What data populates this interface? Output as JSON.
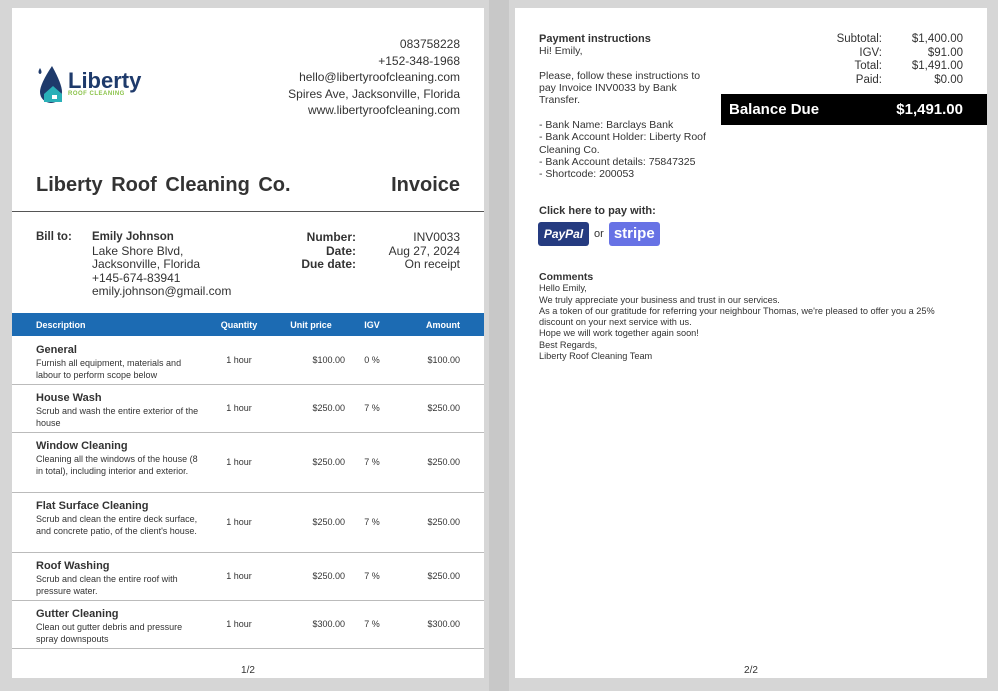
{
  "company": {
    "name": "Liberty Roof Cleaning Co.",
    "logo_text": "Liberty",
    "logo_sub": "ROOF CLEANING",
    "phone1": "083758228",
    "phone2": "+152-348-1968",
    "email": "hello@libertyroofcleaning.com",
    "address": "Spires Ave, Jacksonville, Florida",
    "website": "www.libertyroofcleaning.com"
  },
  "doc_title": "Invoice",
  "bill_to": {
    "label": "Bill to:",
    "name": "Emily Johnson",
    "line1": "Lake Shore Blvd,",
    "line2": "Jacksonville, Florida",
    "phone": "+145-674-83941",
    "email": "emily.johnson@gmail.com"
  },
  "meta": {
    "number_label": "Number:",
    "number": "INV0033",
    "date_label": "Date:",
    "date": "Aug 27, 2024",
    "due_label": "Due date:",
    "due": "On receipt"
  },
  "table": {
    "headers": [
      "Description",
      "Quantity",
      "Unit price",
      "IGV",
      "Amount"
    ],
    "rows": [
      {
        "title": "General",
        "desc": "Furnish all equipment, materials and labour to perform scope below",
        "qty": "1 hour",
        "price": "$100.00",
        "igv": "0 %",
        "amount": "$100.00"
      },
      {
        "title": "House Wash",
        "desc": "Scrub and wash the entire exterior of the house",
        "qty": "1 hour",
        "price": "$250.00",
        "igv": "7 %",
        "amount": "$250.00"
      },
      {
        "title": "Window Cleaning",
        "desc": "Cleaning all the windows of the house (8 in total), including interior and exterior.",
        "qty": "1 hour",
        "price": "$250.00",
        "igv": "7 %",
        "amount": "$250.00"
      },
      {
        "title": "Flat Surface Cleaning",
        "desc": "Scrub and clean the entire deck surface, and concrete patio, of the client's house.",
        "qty": "1 hour",
        "price": "$250.00",
        "igv": "7 %",
        "amount": "$250.00"
      },
      {
        "title": "Roof Washing",
        "desc": "Scrub and clean the entire roof with pressure water.",
        "qty": "1 hour",
        "price": "$250.00",
        "igv": "7 %",
        "amount": "$250.00"
      },
      {
        "title": "Gutter Cleaning",
        "desc": "Clean out gutter debris and pressure spray downspouts",
        "qty": "1 hour",
        "price": "$300.00",
        "igv": "7 %",
        "amount": "$300.00"
      }
    ]
  },
  "page1_num": "1/2",
  "page2_num": "2/2",
  "payment": {
    "title": "Payment instructions",
    "greeting": "Hi! Emily,",
    "p1": "Please,  follow these instructions to pay Invoice INV0033 by Bank Transfer.",
    "bank": "- Bank Name: Barclays Bank",
    "holder": "- Bank Account Holder:  Liberty Roof Cleaning Co.",
    "account": "- Bank Account details: 75847325",
    "shortcode": "- Shortcode: 200053",
    "click": "Click here to pay with:",
    "paypal": "PayPal",
    "or": "or",
    "stripe": "stripe"
  },
  "totals": {
    "subtotal_label": "Subtotal:",
    "subtotal": "$1,400.00",
    "igv_label": "IGV:",
    "igv": "$91.00",
    "total_label": "Total:",
    "total": "$1,491.00",
    "paid_label": "Paid:",
    "paid": "$0.00",
    "balance_label": "Balance Due",
    "balance": "$1,491.00"
  },
  "comments": {
    "title": "Comments",
    "lines": [
      "Hello Emily,",
      "We truly appreciate your business and trust in our services.",
      "As a token of our gratitude for referring your neighbour Thomas, we're pleased to offer you a 25% discount on your next service with us.",
      "Hope we will work together again soon!",
      "Best Regards,",
      "Liberty Roof Cleaning Team"
    ]
  },
  "colors": {
    "table_header": "#1c6bb3",
    "paypal": "#253b80",
    "stripe": "#6772e5"
  }
}
